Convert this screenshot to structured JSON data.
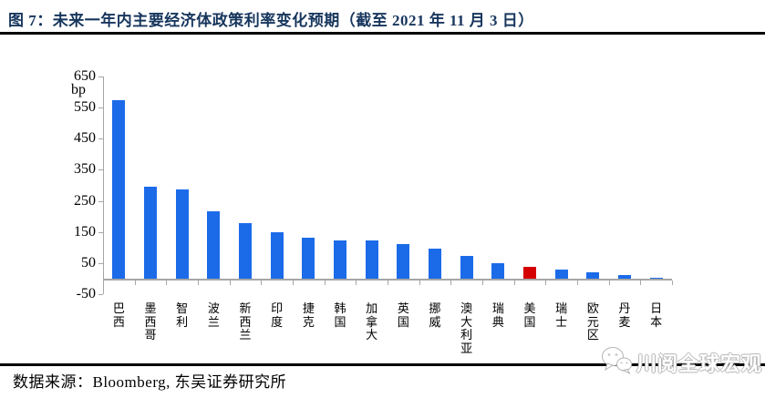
{
  "title": "图 7：未来一年内主要经济体政策利率变化预期（截至 2021 年 11 月 3 日）",
  "source_note": "数据来源：Bloomberg, 东吴证券研究所",
  "watermark": {
    "label": "川阅全球宏观",
    "icon": "wechat-icon"
  },
  "colors": {
    "title_navy": "#17365D",
    "bar_blue": "#1B6BE9",
    "bar_highlight_red": "#D40000",
    "axis_gray": "#A6A6A6",
    "rule_black": "#000000"
  },
  "chart_data": {
    "type": "bar",
    "title": "未来一年内主要经济体政策利率变化预期（截至 2021 年 11 月 3 日）",
    "unit_label": "bp",
    "xlabel": "",
    "ylabel": "bp",
    "ylim": [
      -50,
      650
    ],
    "y_ticks": [
      650,
      550,
      450,
      350,
      250,
      150,
      50,
      -50
    ],
    "grid": false,
    "legend": "none",
    "categories": [
      "巴西",
      "墨西哥",
      "智利",
      "波兰",
      "新西兰",
      "印度",
      "捷克",
      "韩国",
      "加拿大",
      "英国",
      "挪威",
      "澳大利亚",
      "瑞典",
      "美国",
      "瑞士",
      "欧元区",
      "丹麦",
      "日本"
    ],
    "values": [
      575,
      295,
      288,
      218,
      178,
      150,
      131,
      124,
      122,
      112,
      97,
      73,
      51,
      38,
      28,
      21,
      12,
      4
    ],
    "highlight_category": "美国",
    "highlight_index": 13
  }
}
